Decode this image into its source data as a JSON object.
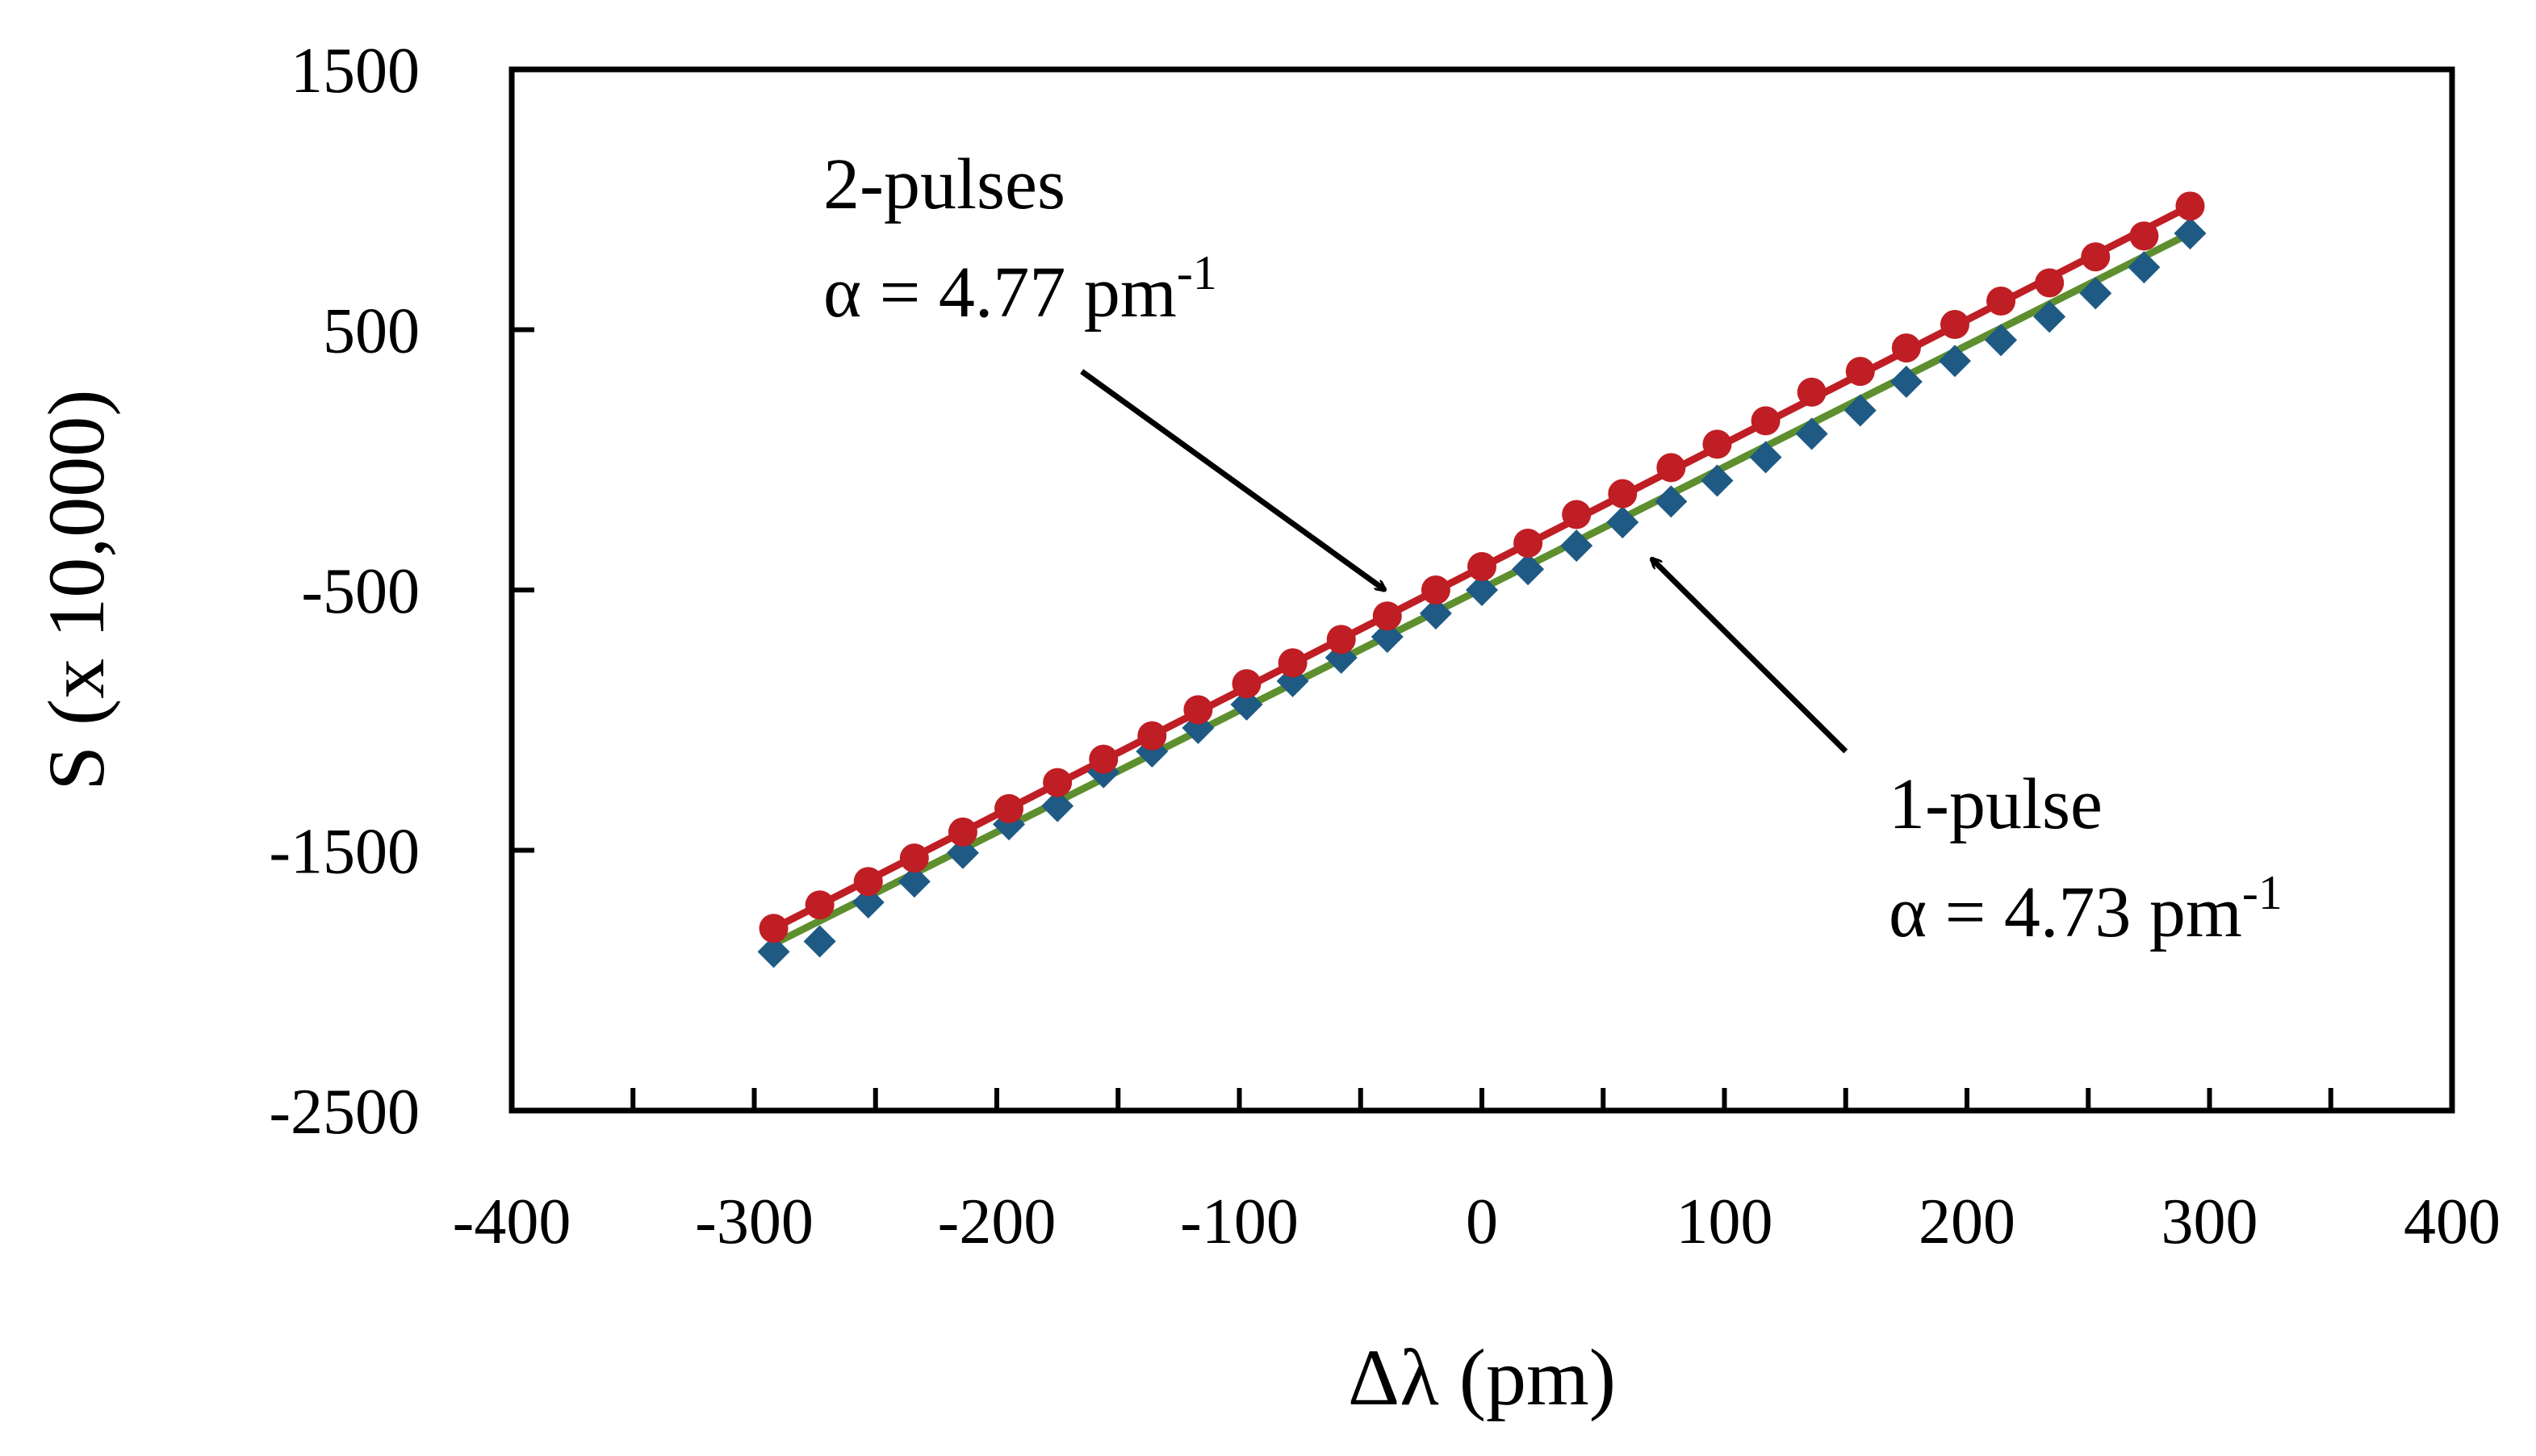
{
  "chart_data": {
    "type": "scatter",
    "title": "",
    "xlabel": "Δλ (pm)",
    "ylabel": "S (x 10,000)",
    "xlim": [
      -400,
      400
    ],
    "ylim": [
      -2500,
      1500
    ],
    "x_ticks": [
      -400,
      -300,
      -200,
      -100,
      0,
      100,
      200,
      300,
      400
    ],
    "y_ticks": [
      1500,
      500,
      -500,
      -1500,
      -2500
    ],
    "x_tick_labels": [
      "-400",
      "-300",
      "-200",
      "-100",
      "0",
      "100",
      "200",
      "300",
      "400"
    ],
    "y_tick_labels": [
      "1500",
      "500",
      "-500",
      "-1500",
      "-2500"
    ],
    "grid": false,
    "series": [
      {
        "name": "2-pulses",
        "marker": "circle",
        "color": "#bf1e24",
        "line_color": "#bf1e24",
        "fit": {
          "x0": -292,
          "y0": -1800,
          "x1": 292,
          "y1": 975
        },
        "x": [
          -292,
          -273,
          -253,
          -234,
          -214,
          -195,
          -175,
          -156,
          -136,
          -117,
          -97,
          -78,
          -58,
          -39,
          -19,
          0,
          19,
          39,
          58,
          78,
          97,
          117,
          136,
          156,
          175,
          195,
          214,
          234,
          253,
          273,
          292
        ],
        "values": [
          -1800,
          -1710,
          -1620,
          -1530,
          -1430,
          -1340,
          -1240,
          -1150,
          -1060,
          -960,
          -860,
          -780,
          -690,
          -600,
          -500,
          -410,
          -320,
          -210,
          -130,
          -30,
          60,
          150,
          260,
          340,
          430,
          520,
          610,
          680,
          780,
          860,
          975
        ]
      },
      {
        "name": "1-pulse",
        "marker": "diamond",
        "color": "#1f5a84",
        "line_color": "#5e8f2e",
        "fit": {
          "x0": -292,
          "y0": -1860,
          "x1": 292,
          "y1": 870
        },
        "x": [
          -292,
          -273,
          -253,
          -234,
          -214,
          -195,
          -175,
          -156,
          -136,
          -117,
          -97,
          -78,
          -58,
          -39,
          -19,
          0,
          19,
          39,
          58,
          78,
          97,
          117,
          136,
          156,
          175,
          195,
          214,
          234,
          253,
          273,
          292
        ],
        "values": [
          -1890,
          -1850,
          -1700,
          -1620,
          -1510,
          -1400,
          -1330,
          -1200,
          -1120,
          -1030,
          -940,
          -850,
          -760,
          -680,
          -590,
          -500,
          -420,
          -330,
          -240,
          -160,
          -80,
          10,
          100,
          190,
          300,
          380,
          460,
          550,
          640,
          740,
          870
        ]
      }
    ],
    "annotations": [
      {
        "id": "two-pulses",
        "title": "2-pulses",
        "alpha_prefix": "α = 4.77 pm",
        "alpha_sup": "-1",
        "arrow_from": [
          -165,
          340
        ],
        "arrow_to": [
          -40,
          -500
        ]
      },
      {
        "id": "one-pulse",
        "title": "1-pulse",
        "alpha_prefix": "α = 4.73 pm",
        "alpha_sup": "-1",
        "arrow_from": [
          150,
          -1120
        ],
        "arrow_to": [
          70,
          -380
        ]
      }
    ]
  }
}
